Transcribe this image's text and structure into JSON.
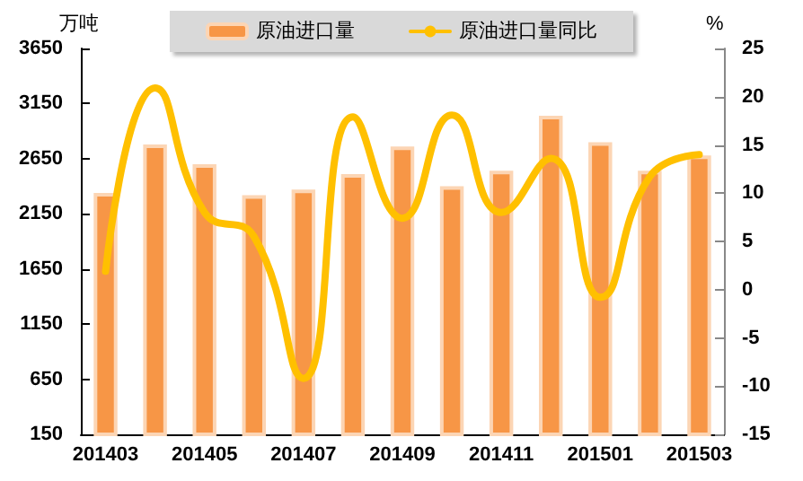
{
  "chart_data": {
    "type": "bar",
    "ylabel": "万吨",
    "y2label": "%",
    "categories": [
      "201403",
      null,
      "201405",
      null,
      "201407",
      null,
      "201409",
      null,
      "201411",
      null,
      "201501",
      null,
      "201503"
    ],
    "series": [
      {
        "name": "原油进口量",
        "color": "#f79646",
        "values": [
          2340,
          2780,
          2600,
          2320,
          2370,
          2510,
          2760,
          2400,
          2540,
          3040,
          2800,
          2540,
          2680
        ]
      },
      {
        "name": "原油进口量同比",
        "type": "line",
        "axis": "y2",
        "color": "#ffc000",
        "values": [
          1.9,
          20.9,
          8,
          5.5,
          -9.2,
          17.9,
          7.4,
          18.1,
          8,
          13.6,
          -0.8,
          11.7,
          14
        ]
      }
    ],
    "ylim": [
      150,
      3650
    ],
    "yticks": [
      150,
      650,
      1150,
      1650,
      2150,
      2650,
      3150,
      3650
    ],
    "y2lim": [
      -15,
      25
    ],
    "y2ticks": [
      -15,
      -10,
      -5,
      0,
      5,
      10,
      15,
      20,
      25
    ],
    "grid": false,
    "legend": "top",
    "marker": "none",
    "line_style": "solid"
  }
}
